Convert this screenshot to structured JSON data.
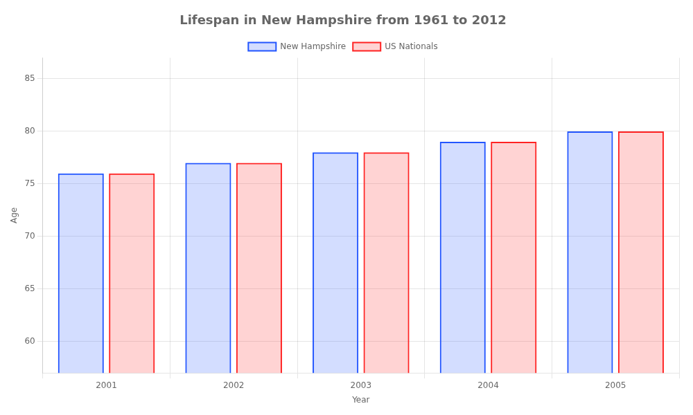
{
  "chart_data": {
    "type": "bar",
    "title": "Lifespan in New Hampshire from 1961 to 2012",
    "xlabel": "Year",
    "ylabel": "Age",
    "categories": [
      "2001",
      "2002",
      "2003",
      "2004",
      "2005"
    ],
    "series": [
      {
        "name": "New Hampshire",
        "color": "#2255ff",
        "values": [
          76,
          77,
          78,
          79,
          80
        ]
      },
      {
        "name": "US Nationals",
        "color": "#ff2222",
        "values": [
          76,
          77,
          78,
          79,
          80
        ]
      }
    ],
    "ylim": [
      57,
      87
    ],
    "yticks": [
      60,
      65,
      70,
      75,
      80,
      85
    ],
    "grid": true,
    "legend": "top"
  }
}
